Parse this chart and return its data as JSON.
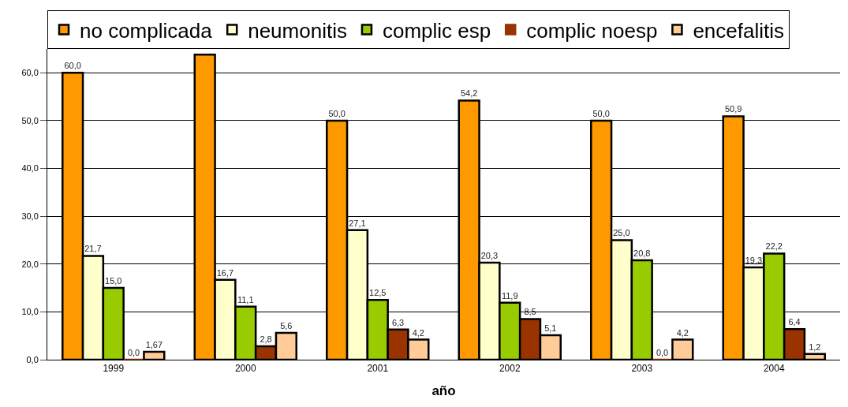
{
  "chart_data": {
    "type": "bar",
    "xlabel": "año",
    "categories": [
      "1999",
      "2000",
      "2001",
      "2002",
      "2003",
      "2004"
    ],
    "series": [
      {
        "name": "no complicada",
        "color": "#ff9900",
        "values": [
          60.0,
          63.8,
          50.0,
          54.2,
          50.0,
          50.9
        ],
        "value_labels": [
          "60,0",
          null,
          "50,0",
          "54,2",
          "50,0",
          "50,9"
        ]
      },
      {
        "name": "neumonitis",
        "color": "#ffffcc",
        "values": [
          21.7,
          16.7,
          27.1,
          20.3,
          25.0,
          19.3
        ],
        "value_labels": [
          "21,7",
          "16,7",
          "27,1",
          "20,3",
          "25,0",
          "19,3"
        ]
      },
      {
        "name": "complic esp",
        "color": "#99cc00",
        "values": [
          15.0,
          11.1,
          12.5,
          11.9,
          20.8,
          22.2
        ],
        "value_labels": [
          "15,0",
          "11,1",
          "12,5",
          "11,9",
          "20,8",
          "22,2"
        ]
      },
      {
        "name": "complic noesp",
        "color": "#993300",
        "values": [
          0.0,
          2.8,
          6.3,
          8.5,
          0.0,
          6.4
        ],
        "value_labels": [
          "0,0",
          "2,8",
          "6,3",
          "8,5",
          "0,0",
          "6,4"
        ]
      },
      {
        "name": "encefalitis",
        "color": "#ffcc99",
        "values": [
          1.67,
          5.6,
          4.2,
          5.1,
          4.2,
          1.2
        ],
        "value_labels": [
          "1,67",
          "5,6",
          "4,2",
          "5,1",
          "4,2",
          "1,2"
        ]
      }
    ],
    "ylim": [
      0,
      65
    ],
    "yticks": [
      {
        "value": 0,
        "label": "0,0"
      },
      {
        "value": 10,
        "label": "10,0"
      },
      {
        "value": 20,
        "label": "20,0"
      },
      {
        "value": 30,
        "label": "30,0"
      },
      {
        "value": 40,
        "label": "40,0"
      },
      {
        "value": 50,
        "label": "50,0"
      },
      {
        "value": 60,
        "label": "60,0"
      }
    ],
    "grid": "y",
    "legend": "top"
  }
}
